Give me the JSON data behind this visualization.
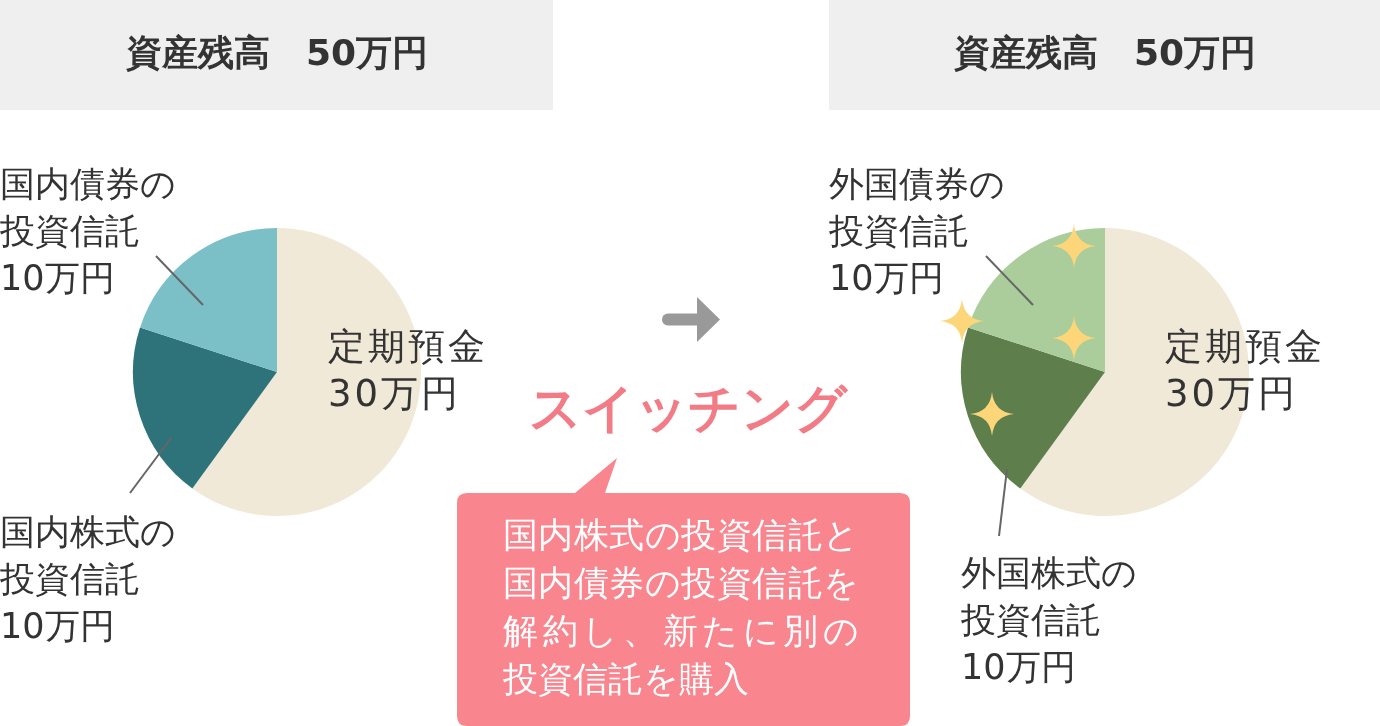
{
  "chart_data": [
    {
      "type": "pie",
      "title": "資産残高　50万円",
      "categories": [
        "定期預金",
        "国内株式の投資信託",
        "国内債券の投資信託"
      ],
      "values": [
        30,
        10,
        10
      ],
      "value_labels": [
        "30万円",
        "10万円",
        "10万円"
      ],
      "colors": [
        "#f0e9d8",
        "#2e737a",
        "#7cc0c7"
      ]
    },
    {
      "type": "other",
      "title": "スイッチング",
      "annotations": [
        "国内株式の投資信託と国内債券の投資信託を解約し、新たに別の投資信託を購入"
      ]
    },
    {
      "type": "pie",
      "title": "資産残高　50万円",
      "categories": [
        "定期預金",
        "外国株式の投資信託",
        "外国債券の投資信託"
      ],
      "values": [
        30,
        10,
        10
      ],
      "value_labels": [
        "30万円",
        "10万円",
        "10万円"
      ],
      "colors": [
        "#f0e9d8",
        "#5e7f4c",
        "#abcc9b"
      ]
    }
  ]
}
